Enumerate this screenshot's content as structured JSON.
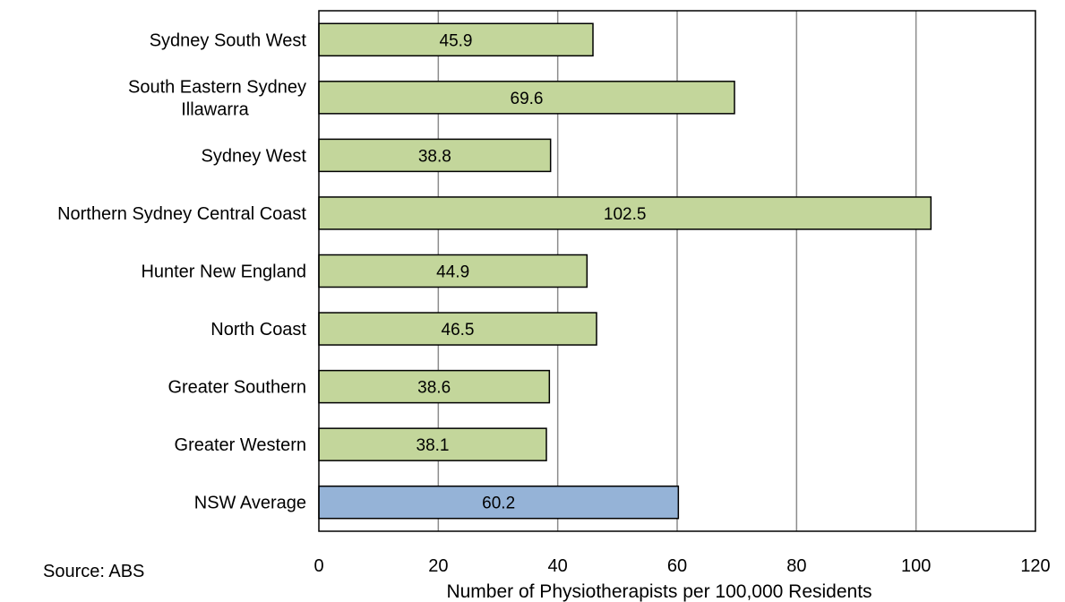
{
  "chart_data": {
    "type": "bar",
    "orientation": "horizontal",
    "categories": [
      "Sydney South West",
      "South Eastern Sydney Illawarra",
      "Sydney West",
      "Northern Sydney Central Coast",
      "Hunter New England",
      "North Coast",
      "Greater Southern",
      "Greater Western",
      "NSW Average"
    ],
    "category_label_lines": [
      [
        "Sydney South West"
      ],
      [
        "South Eastern Sydney",
        "Illawarra"
      ],
      [
        "Sydney West"
      ],
      [
        "Northern Sydney Central Coast"
      ],
      [
        "Hunter New England"
      ],
      [
        "North Coast"
      ],
      [
        "Greater Southern"
      ],
      [
        "Greater Western"
      ],
      [
        "NSW Average"
      ]
    ],
    "values": [
      45.9,
      69.6,
      38.8,
      102.5,
      44.9,
      46.5,
      38.6,
      38.1,
      60.2
    ],
    "data_labels": [
      "45.9",
      "69.6",
      "38.8",
      "102.5",
      "44.9",
      "46.5",
      "38.6",
      "38.1",
      "60.2"
    ],
    "bar_colors": [
      "#c3d69b",
      "#c3d69b",
      "#c3d69b",
      "#c3d69b",
      "#c3d69b",
      "#c3d69b",
      "#c3d69b",
      "#c3d69b",
      "#95b3d7"
    ],
    "xlabel": "Number of  Physiotherapists per 100,000 Residents",
    "xlim": [
      0,
      120
    ],
    "xticks": [
      0,
      20,
      40,
      60,
      80,
      100,
      120
    ],
    "grid": "vertical",
    "legend": "none"
  },
  "source_note": "Source: ABS"
}
